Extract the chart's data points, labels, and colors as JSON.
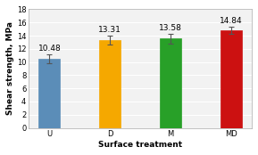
{
  "categories": [
    "U",
    "D",
    "M",
    "MD"
  ],
  "values": [
    10.48,
    13.31,
    13.58,
    14.84
  ],
  "errors": [
    0.7,
    0.65,
    0.75,
    0.55
  ],
  "bar_colors": [
    "#5B8DB8",
    "#F5A800",
    "#28A028",
    "#CC1111"
  ],
  "bar_edge_colors": [
    "#5B8DB8",
    "#F5A800",
    "#28A028",
    "#CC1111"
  ],
  "value_labels": [
    "10.48",
    "13.31",
    "13.58",
    "14.84"
  ],
  "xlabel": "Surface treatment",
  "ylabel": "Shear strength, MPa",
  "ylim": [
    0,
    18
  ],
  "yticks": [
    0,
    2,
    4,
    6,
    8,
    10,
    12,
    14,
    16,
    18
  ],
  "plot_bg_color": "#F2F2F2",
  "background_color": "#FFFFFF",
  "grid_color": "#FFFFFF",
  "label_fontsize": 6.5,
  "tick_fontsize": 6,
  "value_fontsize": 6.5,
  "bar_width": 0.35
}
